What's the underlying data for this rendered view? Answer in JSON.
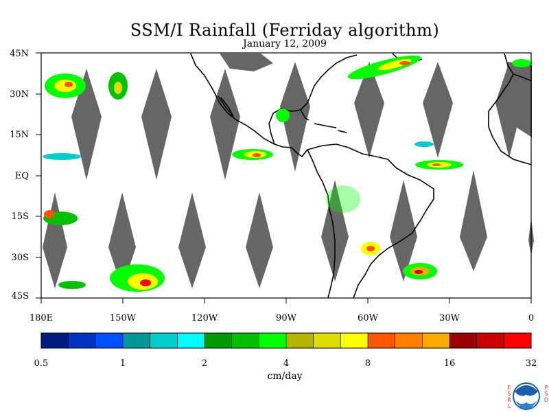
{
  "header": {
    "title": "SSM/I Rainfall (Ferriday algorithm)",
    "date": "January 12, 2009"
  },
  "map": {
    "lat_labels": [
      "45N",
      "30N",
      "15N",
      "EQ",
      "15S",
      "30S",
      "45S"
    ],
    "lon_labels": [
      "180E",
      "150W",
      "120W",
      "90W",
      "60W",
      "30W",
      "0"
    ],
    "colors": {
      "missing_swath": "#666666",
      "coastline": "#000000"
    }
  },
  "colorbar": {
    "label": "cm/day",
    "ticks": [
      "0.5",
      "1",
      "2",
      "4",
      "8",
      "16",
      "32"
    ],
    "colors": [
      "#001a80",
      "#0033c0",
      "#0050ff",
      "#00999a",
      "#00cccc",
      "#00ffff",
      "#009900",
      "#00c000",
      "#00ff00",
      "#b3b300",
      "#dddd00",
      "#ffff00",
      "#ff5500",
      "#ff8000",
      "#ffaa00",
      "#990000",
      "#cc0000",
      "#ff0000"
    ]
  },
  "logo": {
    "left_text": [
      "E",
      "S",
      "R",
      "L"
    ],
    "right_text": [
      "P",
      "S",
      "D"
    ],
    "center_text": "NOAA"
  }
}
